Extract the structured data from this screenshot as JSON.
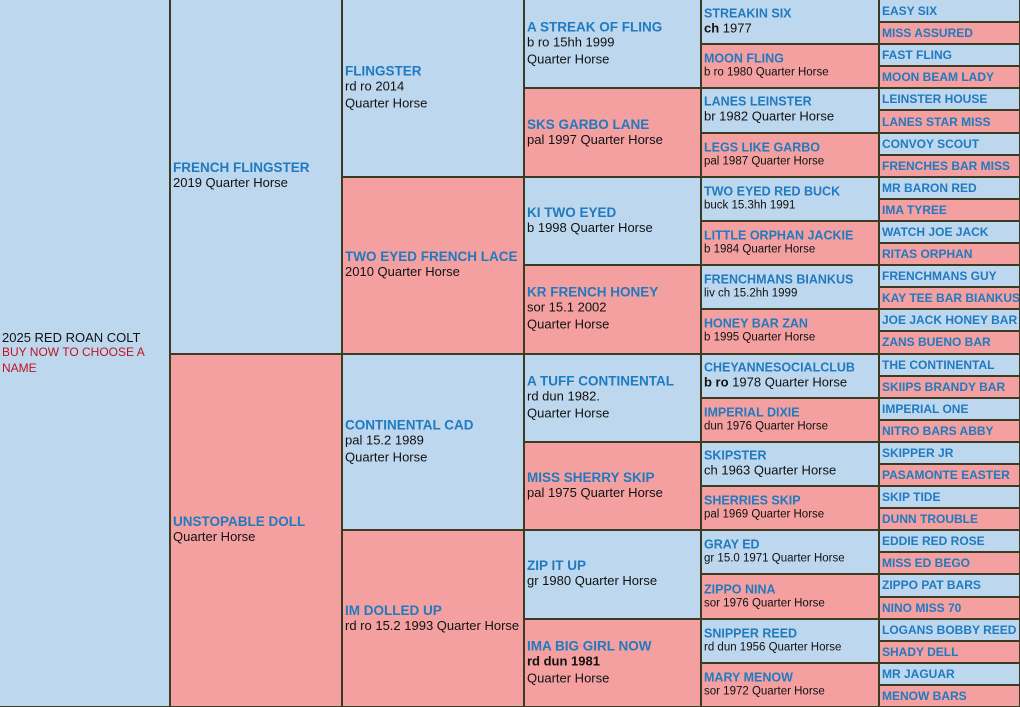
{
  "title": "2025 RED ROAN COLT",
  "subtitle": "BUY NOW TO CHOOSE A NAME",
  "generations": [
    [
      {
        "name": "2025 RED ROAN COLT",
        "sub": "BUY NOW TO CHOOSE A NAME",
        "color": "blue"
      }
    ],
    [
      {
        "name": "FRENCH FLINGSTER",
        "lines": [
          "2019 Quarter Horse"
        ],
        "color": "blue"
      },
      {
        "name": "UNSTOPABLE DOLL",
        "lines": [
          "Quarter Horse"
        ],
        "color": "pink"
      }
    ],
    [
      {
        "name": "FLINGSTER",
        "lines": [
          "rd ro 2014",
          "Quarter Horse"
        ],
        "color": "blue"
      },
      {
        "name": "TWO EYED FRENCH LACE",
        "lines": [
          "2010 Quarter Horse"
        ],
        "color": "pink"
      },
      {
        "name": "CONTINENTAL CAD",
        "lines": [
          "pal 15.2 1989",
          "Quarter Horse"
        ],
        "color": "blue"
      },
      {
        "name": "IM DOLLED UP",
        "lines": [
          "rd ro 15.2 1993 Quarter Horse"
        ],
        "color": "pink"
      }
    ],
    [
      {
        "name": "A STREAK OF FLING",
        "lines": [
          "b ro 15hh 1999",
          "Quarter Horse"
        ],
        "color": "blue"
      },
      {
        "name": "SKS GARBO LANE",
        "lines": [
          "pal 1997 Quarter Horse"
        ],
        "color": "pink"
      },
      {
        "name": "KI TWO EYED",
        "lines": [
          "b 1998 Quarter Horse"
        ],
        "color": "blue"
      },
      {
        "name": "KR FRENCH HONEY",
        "lines": [
          "sor 15.1 2002",
          "Quarter Horse"
        ],
        "color": "pink"
      },
      {
        "name": "A TUFF CONTINENTAL",
        "lines": [
          "rd dun 1982.",
          "Quarter Horse"
        ],
        "color": "blue"
      },
      {
        "name": "MISS SHERRY SKIP",
        "lines": [
          "pal 1975 Quarter Horse"
        ],
        "color": "pink"
      },
      {
        "name": "ZIP IT UP",
        "lines": [
          "gr 1980 Quarter Horse"
        ],
        "color": "blue"
      },
      {
        "name": "IMA BIG GIRL NOW",
        "lines": [
          "rd dun 1981",
          "Quarter Horse"
        ],
        "bold_first": true,
        "color": "pink"
      }
    ],
    [
      {
        "name": "STREAKIN SIX",
        "lines": [
          "ch 1977"
        ],
        "bold_prefix": "ch",
        "big": true,
        "color": "blue"
      },
      {
        "name": "MOON FLING",
        "lines": [
          "b ro 1980 Quarter Horse"
        ],
        "color": "pink"
      },
      {
        "name": "LANES LEINSTER",
        "lines": [
          "br 1982 Quarter Horse"
        ],
        "big": true,
        "color": "blue"
      },
      {
        "name": "LEGS LIKE GARBO",
        "lines": [
          "pal 1987 Quarter Horse"
        ],
        "color": "pink"
      },
      {
        "name": "TWO EYED RED BUCK",
        "lines": [
          "buck 15.3hh 1991"
        ],
        "color": "blue"
      },
      {
        "name": "LITTLE ORPHAN JACKIE",
        "lines": [
          "b 1984 Quarter Horse"
        ],
        "color": "pink"
      },
      {
        "name": "FRENCHMANS BIANKUS",
        "lines": [
          "liv ch 15.2hh 1999"
        ],
        "color": "blue"
      },
      {
        "name": "HONEY BAR ZAN",
        "lines": [
          "b 1995 Quarter Horse"
        ],
        "color": "pink"
      },
      {
        "name": "CHEYANNESOCIALCLUB",
        "lines": [
          "b ro 1978 Quarter Horse"
        ],
        "bold_prefix": "b ro",
        "big": true,
        "color": "blue"
      },
      {
        "name": "IMPERIAL DIXIE",
        "lines": [
          "dun 1976 Quarter Horse"
        ],
        "color": "pink"
      },
      {
        "name": "SKIPSTER",
        "lines": [
          "ch 1963 Quarter Horse"
        ],
        "big": true,
        "color": "blue"
      },
      {
        "name": "SHERRIES SKIP",
        "lines": [
          "pal 1969 Quarter Horse"
        ],
        "color": "pink"
      },
      {
        "name": "GRAY ED",
        "lines": [
          "gr 15.0 1971 Quarter Horse"
        ],
        "color": "blue"
      },
      {
        "name": "ZIPPO NINA",
        "lines": [
          "sor 1976 Quarter Horse"
        ],
        "color": "pink"
      },
      {
        "name": "SNIPPER REED",
        "lines": [
          "rd dun 1956 Quarter Horse"
        ],
        "color": "blue"
      },
      {
        "name": "MARY MENOW",
        "lines": [
          "sor 1972 Quarter Horse"
        ],
        "color": "pink"
      }
    ],
    [
      {
        "name": "EASY SIX",
        "color": "blue"
      },
      {
        "name": "MISS ASSURED",
        "color": "pink"
      },
      {
        "name": "FAST FLING",
        "color": "blue"
      },
      {
        "name": "MOON BEAM LADY",
        "color": "pink"
      },
      {
        "name": "LEINSTER HOUSE",
        "color": "blue"
      },
      {
        "name": "LANES STAR MISS",
        "color": "pink"
      },
      {
        "name": "CONVOY SCOUT",
        "color": "blue"
      },
      {
        "name": "FRENCHES BAR MISS",
        "color": "pink"
      },
      {
        "name": "MR BARON RED",
        "color": "blue"
      },
      {
        "name": "IMA TYREE",
        "color": "pink"
      },
      {
        "name": "WATCH JOE JACK",
        "color": "blue"
      },
      {
        "name": "RITAS ORPHAN",
        "color": "pink"
      },
      {
        "name": "FRENCHMANS GUY",
        "color": "blue"
      },
      {
        "name": "KAY TEE BAR BIANKUS",
        "color": "pink"
      },
      {
        "name": "JOE JACK HONEY BAR",
        "color": "blue"
      },
      {
        "name": "ZANS BUENO BAR",
        "color": "pink"
      },
      {
        "name": "THE CONTINENTAL",
        "color": "blue"
      },
      {
        "name": "SKIIPS BRANDY BAR",
        "color": "pink"
      },
      {
        "name": "IMPERIAL ONE",
        "color": "blue"
      },
      {
        "name": "NITRO BARS ABBY",
        "color": "pink"
      },
      {
        "name": "SKIPPER JR",
        "color": "blue"
      },
      {
        "name": "PASAMONTE EASTER",
        "color": "pink"
      },
      {
        "name": "SKIP TIDE",
        "color": "blue"
      },
      {
        "name": "DUNN TROUBLE",
        "color": "pink"
      },
      {
        "name": "EDDIE RED ROSE",
        "color": "blue"
      },
      {
        "name": "MISS ED BEGO",
        "color": "pink"
      },
      {
        "name": "ZIPPO PAT BARS",
        "color": "blue"
      },
      {
        "name": "NINO MISS 70",
        "color": "pink"
      },
      {
        "name": "LOGANS BOBBY REED",
        "color": "blue"
      },
      {
        "name": "SHADY DELL",
        "color": "pink"
      },
      {
        "name": "MR JAGUAR",
        "color": "blue"
      },
      {
        "name": "MENOW BARS",
        "color": "pink"
      }
    ]
  ]
}
